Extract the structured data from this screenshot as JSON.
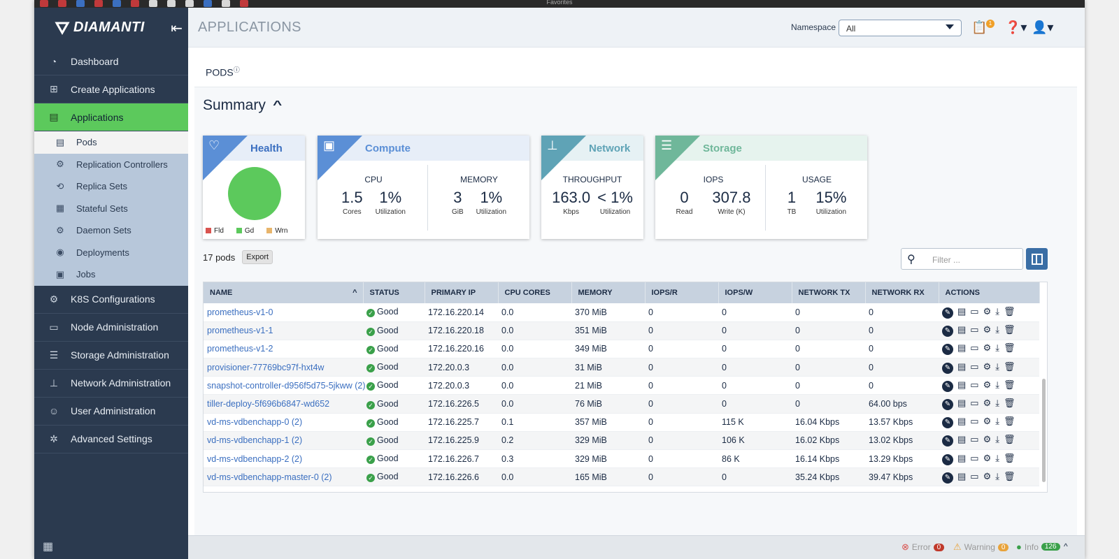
{
  "browser": {
    "favorites_label": "Favorites"
  },
  "brand": {
    "name": "DIAMANTI"
  },
  "header": {
    "title": "APPLICATIONS",
    "namespace_label": "Namespace",
    "namespace_value": "All",
    "notification_count": "1"
  },
  "nav": {
    "items": [
      {
        "label": "Dashboard",
        "icon": "gauge-icon"
      },
      {
        "label": "Create Applications",
        "icon": "plus-square-icon"
      },
      {
        "label": "Applications",
        "icon": "list-icon"
      }
    ],
    "sub_items": [
      {
        "label": "Pods"
      },
      {
        "label": "Replication Controllers"
      },
      {
        "label": "Replica Sets"
      },
      {
        "label": "Stateful Sets"
      },
      {
        "label": "Daemon Sets"
      },
      {
        "label": "Deployments"
      },
      {
        "label": "Jobs"
      }
    ],
    "items_after": [
      {
        "label": "K8S Configurations"
      },
      {
        "label": "Node Administration"
      },
      {
        "label": "Storage Administration"
      },
      {
        "label": "Network Administration"
      },
      {
        "label": "User Administration"
      },
      {
        "label": "Advanced Settings"
      }
    ]
  },
  "content": {
    "pods_label": "PODS",
    "summary_title": "Summary",
    "health": {
      "title": "Health",
      "legend": [
        "Fld",
        "Gd",
        "Wrn"
      ]
    },
    "compute": {
      "title": "Compute",
      "cpu": {
        "title": "CPU",
        "v1": "1.5",
        "l1": "Cores",
        "v2": "1%",
        "l2": "Utilization"
      },
      "memory": {
        "title": "MEMORY",
        "v1": "3",
        "l1": "GiB",
        "v2": "1%",
        "l2": "Utilization"
      }
    },
    "network": {
      "title": "Network",
      "throughput": {
        "title": "THROUGHPUT",
        "v1": "163.0",
        "l1": "Kbps",
        "v2": "< 1%",
        "l2": "Utilization"
      }
    },
    "storage": {
      "title": "Storage",
      "iops": {
        "title": "IOPS",
        "v1": "0",
        "l1": "Read",
        "v2": "307.8",
        "l2": "Write (K)"
      },
      "usage": {
        "title": "USAGE",
        "v1": "1",
        "l1": "TB",
        "v2": "15%",
        "l2": "Utilization"
      }
    },
    "pod_count": "17 pods",
    "export_label": "Export",
    "filter_placeholder": "Filter ..."
  },
  "table": {
    "columns": [
      "NAME",
      "STATUS",
      "PRIMARY IP",
      "CPU CORES",
      "MEMORY",
      "IOPS/R",
      "IOPS/W",
      "NETWORK TX",
      "NETWORK RX",
      "ACTIONS"
    ],
    "rows": [
      {
        "name": "prometheus-v1-0",
        "status": "Good",
        "ip": "172.16.220.14",
        "cpu": "0.0",
        "mem": "370 MiB",
        "iopsr": "0",
        "iopsw": "0",
        "tx": "0",
        "rx": "0"
      },
      {
        "name": "prometheus-v1-1",
        "status": "Good",
        "ip": "172.16.220.18",
        "cpu": "0.0",
        "mem": "351 MiB",
        "iopsr": "0",
        "iopsw": "0",
        "tx": "0",
        "rx": "0"
      },
      {
        "name": "prometheus-v1-2",
        "status": "Good",
        "ip": "172.16.220.16",
        "cpu": "0.0",
        "mem": "349 MiB",
        "iopsr": "0",
        "iopsw": "0",
        "tx": "0",
        "rx": "0"
      },
      {
        "name": "provisioner-77769bc97f-hxt4w",
        "status": "Good",
        "ip": "172.20.0.3",
        "cpu": "0.0",
        "mem": "31 MiB",
        "iopsr": "0",
        "iopsw": "0",
        "tx": "0",
        "rx": "0"
      },
      {
        "name": "snapshot-controller-d956f5d75-5jkww (2)",
        "status": "Good",
        "ip": "172.20.0.3",
        "cpu": "0.0",
        "mem": "21 MiB",
        "iopsr": "0",
        "iopsw": "0",
        "tx": "0",
        "rx": "0"
      },
      {
        "name": "tiller-deploy-5f696b6847-wd652",
        "status": "Good",
        "ip": "172.16.226.5",
        "cpu": "0.0",
        "mem": "76 MiB",
        "iopsr": "0",
        "iopsw": "0",
        "tx": "0",
        "rx": "64.00 bps"
      },
      {
        "name": "vd-ms-vdbenchapp-0 (2)",
        "status": "Good",
        "ip": "172.16.225.7",
        "cpu": "0.1",
        "mem": "357 MiB",
        "iopsr": "0",
        "iopsw": "115 K",
        "tx": "16.04 Kbps",
        "rx": "13.57 Kbps"
      },
      {
        "name": "vd-ms-vdbenchapp-1 (2)",
        "status": "Good",
        "ip": "172.16.225.9",
        "cpu": "0.2",
        "mem": "329 MiB",
        "iopsr": "0",
        "iopsw": "106 K",
        "tx": "16.02 Kbps",
        "rx": "13.02 Kbps"
      },
      {
        "name": "vd-ms-vdbenchapp-2 (2)",
        "status": "Good",
        "ip": "172.16.226.7",
        "cpu": "0.3",
        "mem": "329 MiB",
        "iopsr": "0",
        "iopsw": "86 K",
        "tx": "16.14 Kbps",
        "rx": "13.29 Kbps"
      },
      {
        "name": "vd-ms-vdbenchapp-master-0 (2)",
        "status": "Good",
        "ip": "172.16.226.6",
        "cpu": "0.0",
        "mem": "165 MiB",
        "iopsr": "0",
        "iopsw": "0",
        "tx": "35.24 Kbps",
        "rx": "39.47 Kbps"
      }
    ]
  },
  "status_bar": {
    "error_label": "Error",
    "error_count": "0",
    "warning_label": "Warning",
    "warning_count": "0",
    "info_label": "Info",
    "info_count": "126"
  },
  "colors": {
    "accent_green": "#5cc95c",
    "sidebar": "#2b3a4f",
    "health_blue": "#5b8fd6",
    "compute_blue": "#5b8fd6",
    "network_teal": "#5fa3b6",
    "storage_green": "#6fb79a"
  }
}
